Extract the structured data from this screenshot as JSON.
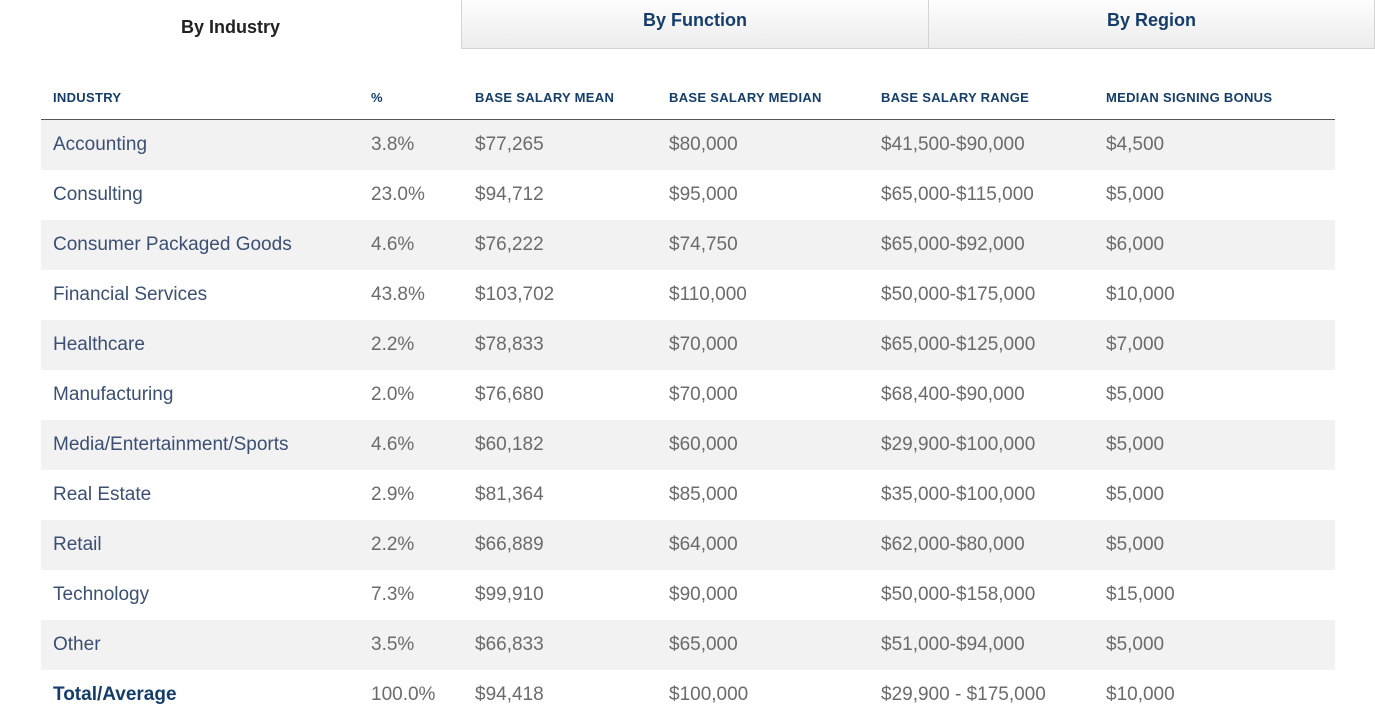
{
  "tabs": [
    {
      "label": "By Industry",
      "active": true
    },
    {
      "label": "By Function",
      "active": false
    },
    {
      "label": "By Region",
      "active": false
    }
  ],
  "table": {
    "headers": [
      "INDUSTRY",
      "%",
      "BASE SALARY MEAN",
      "BASE SALARY MEDIAN",
      "BASE SALARY RANGE",
      "MEDIAN SIGNING BONUS"
    ],
    "rows": [
      [
        "Accounting",
        "3.8%",
        "$77,265",
        "$80,000",
        "$41,500-$90,000",
        "$4,500"
      ],
      [
        "Consulting",
        "23.0%",
        "$94,712",
        "$95,000",
        "$65,000-$115,000",
        "$5,000"
      ],
      [
        "Consumer Packaged Goods",
        "4.6%",
        "$76,222",
        "$74,750",
        "$65,000-$92,000",
        "$6,000"
      ],
      [
        "Financial Services",
        "43.8%",
        "$103,702",
        "$110,000",
        "$50,000-$175,000",
        "$10,000"
      ],
      [
        "Healthcare",
        "2.2%",
        "$78,833",
        "$70,000",
        "$65,000-$125,000",
        "$7,000"
      ],
      [
        "Manufacturing",
        "2.0%",
        "$76,680",
        "$70,000",
        "$68,400-$90,000",
        "$5,000"
      ],
      [
        "Media/Entertainment/Sports",
        "4.6%",
        "$60,182",
        "$60,000",
        "$29,900-$100,000",
        "$5,000"
      ],
      [
        "Real Estate",
        "2.9%",
        "$81,364",
        "$85,000",
        "$35,000-$100,000",
        "$5,000"
      ],
      [
        "Retail",
        "2.2%",
        "$66,889",
        "$64,000",
        "$62,000-$80,000",
        "$5,000"
      ],
      [
        "Technology",
        "7.3%",
        "$99,910",
        "$90,000",
        "$50,000-$158,000",
        "$15,000"
      ],
      [
        "Other",
        "3.5%",
        "$66,833",
        "$65,000",
        "$51,000-$94,000",
        "$5,000"
      ]
    ],
    "total": [
      "Total/Average",
      "100.0%",
      "$94,418",
      "$100,000",
      "$29,900 - $175,000",
      "$10,000"
    ]
  },
  "colors": {
    "heading": "#143d6b",
    "row_shade": "#f2f2f2",
    "cell_text": "#6b6b6b"
  }
}
